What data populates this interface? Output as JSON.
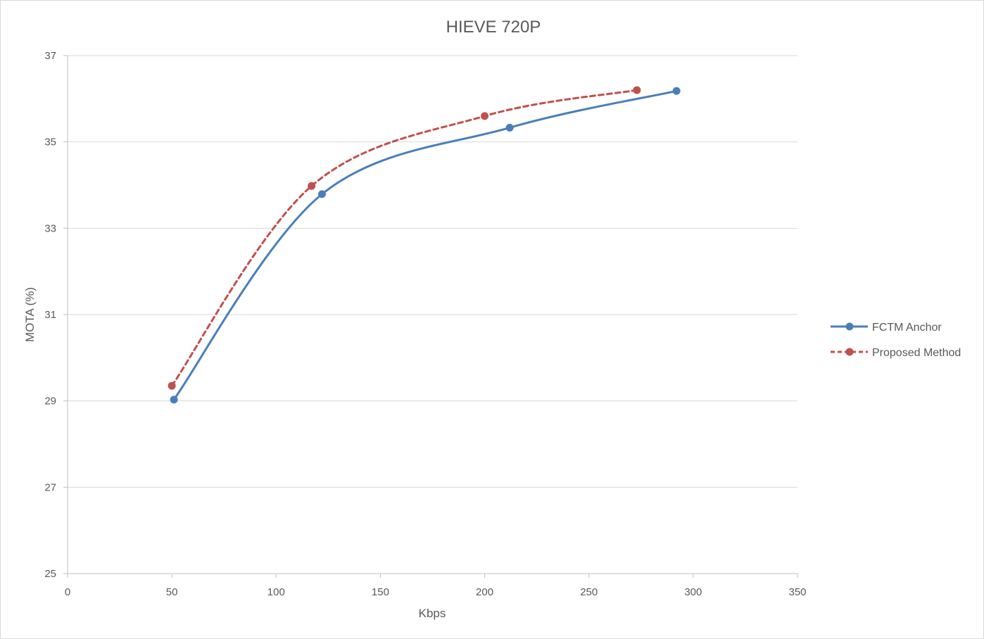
{
  "chart_data": {
    "type": "line",
    "title": "HIEVE 720P",
    "xlabel": "Kbps",
    "ylabel": "MOTA (%)",
    "xlim": [
      0,
      350
    ],
    "ylim": [
      25,
      37
    ],
    "x_ticks": [
      "0",
      "50",
      "100",
      "150",
      "200",
      "250",
      "300",
      "350"
    ],
    "y_ticks": [
      "25",
      "27",
      "29",
      "31",
      "33",
      "35",
      "37"
    ],
    "grid": true,
    "smooth": true,
    "legend_position": "right",
    "series": [
      {
        "name": "FCTM Anchor",
        "color": "#4a7ebb",
        "dash": "solid",
        "points": [
          {
            "x": 51,
            "y": 29.03
          },
          {
            "x": 122,
            "y": 33.79
          },
          {
            "x": 212,
            "y": 35.33
          },
          {
            "x": 292,
            "y": 36.18
          }
        ]
      },
      {
        "name": "Proposed Method",
        "color": "#c0504d",
        "dash": "dashed",
        "points": [
          {
            "x": 50,
            "y": 29.35
          },
          {
            "x": 117,
            "y": 33.98
          },
          {
            "x": 200,
            "y": 35.6
          },
          {
            "x": 273,
            "y": 36.2
          }
        ]
      }
    ]
  }
}
